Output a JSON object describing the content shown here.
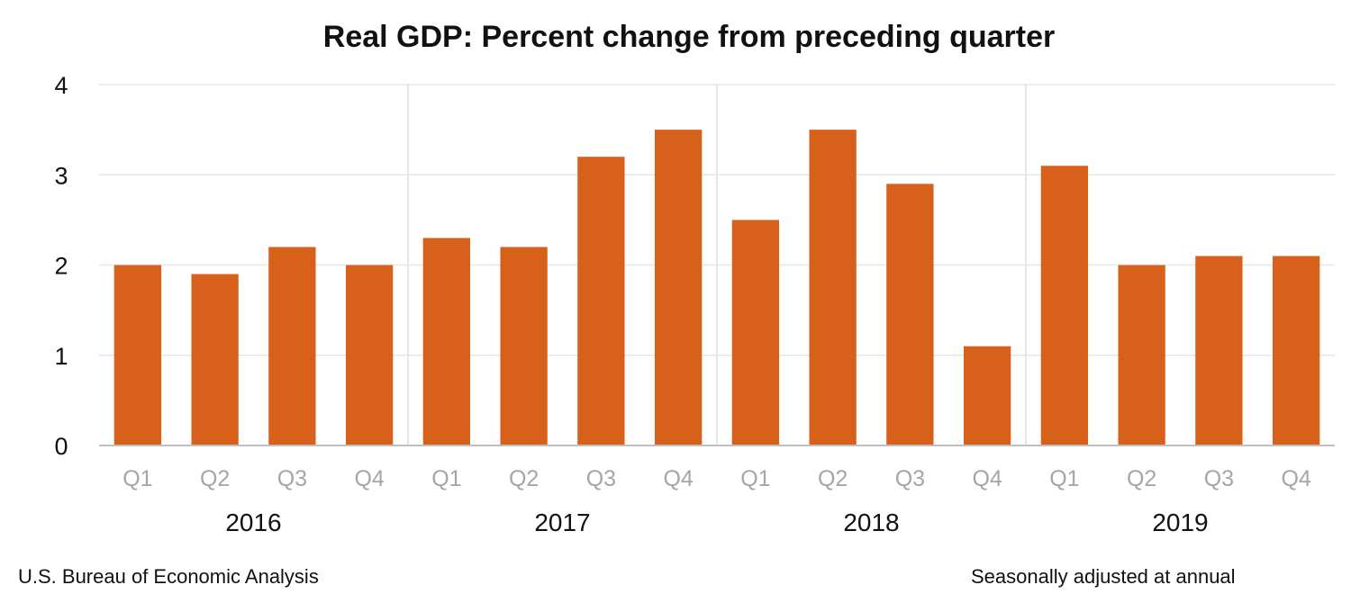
{
  "chart_data": {
    "type": "bar",
    "title": "Real GDP:  Percent change from preceding quarter",
    "categories": [
      "Q1",
      "Q2",
      "Q3",
      "Q4",
      "Q1",
      "Q2",
      "Q3",
      "Q4",
      "Q1",
      "Q2",
      "Q3",
      "Q4",
      "Q1",
      "Q2",
      "Q3",
      "Q4"
    ],
    "groups": [
      {
        "label": "2016",
        "count": 4
      },
      {
        "label": "2017",
        "count": 4
      },
      {
        "label": "2018",
        "count": 4
      },
      {
        "label": "2019",
        "count": 4
      }
    ],
    "values": [
      2.0,
      1.9,
      2.2,
      2.0,
      2.3,
      2.2,
      3.2,
      3.5,
      2.5,
      3.5,
      2.9,
      1.1,
      3.1,
      2.0,
      2.1,
      2.1
    ],
    "ylim": [
      0,
      4
    ],
    "yticks": [
      0,
      1,
      2,
      3,
      4
    ],
    "xlabel": "",
    "ylabel": "",
    "grid": true,
    "bar_color": "#d7601a",
    "gridline_color": "#e6e6e6",
    "axis_color": "#bfbfbf",
    "quarter_label_color": "#a6a6a6"
  },
  "footer": {
    "source": "U.S. Bureau of Economic Analysis",
    "note": "Seasonally adjusted at annual"
  }
}
